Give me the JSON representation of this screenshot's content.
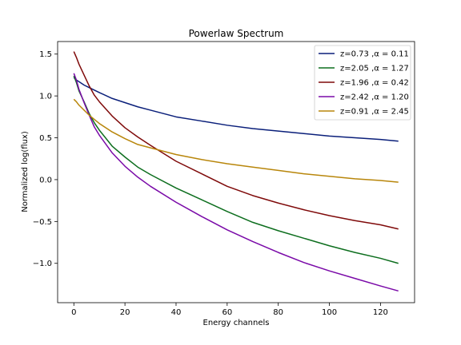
{
  "chart_data": {
    "type": "line",
    "title": "Powerlaw Spectrum",
    "xlabel": "Energy channels",
    "ylabel": "Normalized log(flux)",
    "xlim": [
      -6.35,
      133.35
    ],
    "ylim": [
      -1.47,
      1.65
    ],
    "xticks": [
      0,
      20,
      40,
      60,
      80,
      100,
      120
    ],
    "yticks": [
      -1.0,
      -0.5,
      0.0,
      0.5,
      1.0,
      1.5
    ],
    "xtick_labels": [
      "0",
      "20",
      "40",
      "60",
      "80",
      "100",
      "120"
    ],
    "ytick_labels": [
      "−1.0",
      "−0.5",
      "0.0",
      "0.5",
      "1.0",
      "1.5"
    ],
    "grid": false,
    "legend_position": "top-right",
    "x": [
      0,
      1,
      2,
      4,
      6,
      8,
      10,
      15,
      20,
      25,
      30,
      40,
      50,
      60,
      70,
      80,
      90,
      100,
      110,
      120,
      127
    ],
    "series": [
      {
        "name": "z=0.73 ,α = 0.11",
        "color": "#0a1f7a",
        "values": [
          1.22,
          1.19,
          1.17,
          1.13,
          1.1,
          1.07,
          1.04,
          0.97,
          0.92,
          0.87,
          0.83,
          0.75,
          0.7,
          0.65,
          0.61,
          0.58,
          0.55,
          0.52,
          0.5,
          0.48,
          0.46
        ]
      },
      {
        "name": "z=2.05 ,α = 1.27",
        "color": "#0d6e1e",
        "values": [
          1.24,
          1.16,
          1.06,
          0.93,
          0.79,
          0.68,
          0.59,
          0.4,
          0.27,
          0.15,
          0.06,
          -0.1,
          -0.24,
          -0.38,
          -0.51,
          -0.61,
          -0.7,
          -0.79,
          -0.87,
          -0.94,
          -1.0
        ]
      },
      {
        "name": "z=1.96 ,α = 0.42",
        "color": "#7f0a0a",
        "values": [
          1.53,
          1.46,
          1.38,
          1.25,
          1.12,
          1.01,
          0.93,
          0.76,
          0.62,
          0.51,
          0.41,
          0.22,
          0.07,
          -0.08,
          -0.19,
          -0.28,
          -0.36,
          -0.43,
          -0.49,
          -0.54,
          -0.59
        ]
      },
      {
        "name": "z=2.42 ,α = 1.20",
        "color": "#7a0aa8",
        "values": [
          1.27,
          1.19,
          1.08,
          0.92,
          0.77,
          0.63,
          0.53,
          0.32,
          0.16,
          0.03,
          -0.08,
          -0.27,
          -0.44,
          -0.6,
          -0.74,
          -0.87,
          -0.99,
          -1.09,
          -1.18,
          -1.27,
          -1.33
        ]
      },
      {
        "name": "z=0.91 ,α = 2.45",
        "color": "#b8860b",
        "values": [
          0.96,
          0.93,
          0.89,
          0.83,
          0.77,
          0.72,
          0.67,
          0.57,
          0.49,
          0.42,
          0.38,
          0.3,
          0.24,
          0.19,
          0.15,
          0.11,
          0.07,
          0.04,
          0.01,
          -0.01,
          -0.03
        ]
      }
    ]
  }
}
